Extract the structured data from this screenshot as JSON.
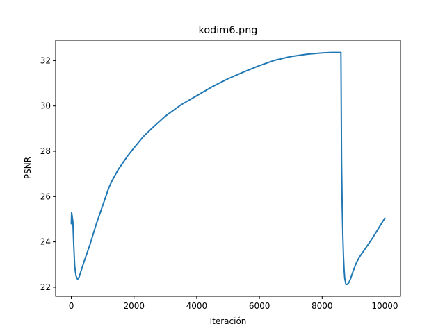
{
  "chart_data": {
    "type": "line",
    "title": "kodim6.png",
    "xlabel": "Iteración",
    "ylabel": "PSNR",
    "xlim": [
      -500,
      10500
    ],
    "ylim": [
      21.6,
      32.9
    ],
    "xticks": [
      0,
      2000,
      4000,
      6000,
      8000,
      10000
    ],
    "yticks": [
      22,
      24,
      26,
      28,
      30,
      32
    ],
    "grid": false,
    "legend": "none",
    "series": [
      {
        "color": "#1f77b4",
        "x": [
          0,
          10,
          30,
          50,
          80,
          110,
          150,
          200,
          250,
          400,
          600,
          800,
          1000,
          1200,
          1300,
          1500,
          1800,
          2000,
          2300,
          2600,
          3000,
          3500,
          4000,
          4500,
          5000,
          5500,
          6000,
          6500,
          7000,
          7500,
          8000,
          8300,
          8600,
          8610,
          8620,
          8640,
          8660,
          8680,
          8700,
          8720,
          8760,
          8800,
          8850,
          8900,
          9000,
          9100,
          9200,
          9400,
          9600,
          9800,
          10000
        ],
        "y": [
          24.8,
          25.3,
          25.1,
          24.9,
          23.8,
          22.9,
          22.5,
          22.35,
          22.45,
          23.1,
          23.9,
          24.8,
          25.6,
          26.4,
          26.7,
          27.2,
          27.8,
          28.15,
          28.65,
          29.05,
          29.55,
          30.05,
          30.45,
          30.85,
          31.2,
          31.5,
          31.78,
          32.02,
          32.18,
          32.28,
          32.34,
          32.36,
          32.36,
          30.0,
          27.5,
          25.6,
          24.3,
          23.4,
          22.8,
          22.4,
          22.12,
          22.12,
          22.2,
          22.35,
          22.75,
          23.1,
          23.35,
          23.75,
          24.15,
          24.6,
          25.05
        ]
      }
    ]
  }
}
